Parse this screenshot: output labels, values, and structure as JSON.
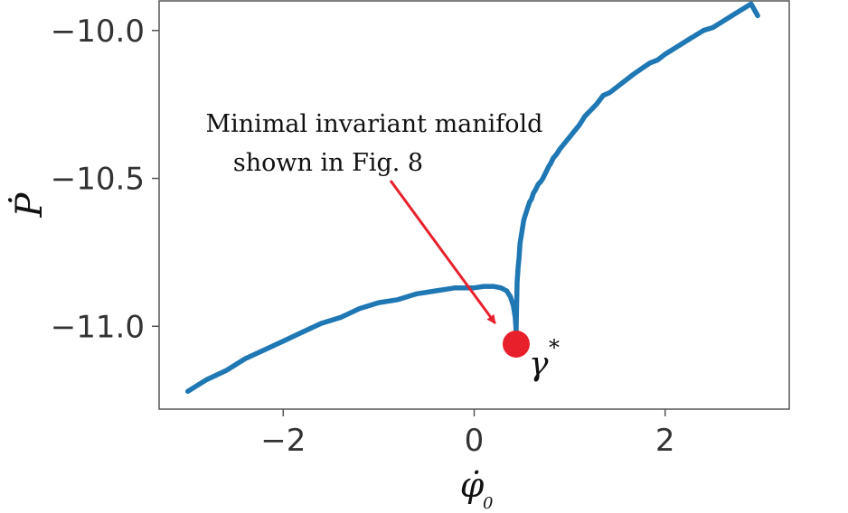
{
  "chart_data": {
    "type": "line",
    "xlabel": "φ̇",
    "xlabel_subscript": "0",
    "ylabel": "Ṗ",
    "xlim": [
      -3.3,
      3.3
    ],
    "ylim": [
      -11.28,
      -9.9
    ],
    "xticks": [
      -2,
      0,
      2
    ],
    "xtick_labels": [
      "−2",
      "0",
      "2"
    ],
    "yticks": [
      -10.0,
      -10.5,
      -11.0
    ],
    "ytick_labels": [
      "−10.0",
      "−10.5",
      "−11.0"
    ],
    "grid": false,
    "series": [
      {
        "color": "#1f77b4",
        "x": [
          -3.0,
          -2.8,
          -2.6,
          -2.4,
          -2.2,
          -2.0,
          -1.8,
          -1.6,
          -1.4,
          -1.2,
          -1.0,
          -0.8,
          -0.6,
          -0.4,
          -0.2,
          0.0,
          0.1,
          0.2,
          0.28,
          0.34,
          0.38,
          0.41,
          0.43,
          0.44,
          0.44,
          0.44,
          0.45,
          0.46,
          0.47,
          0.48,
          0.5,
          0.52,
          0.54,
          0.56,
          0.58,
          0.6,
          0.62,
          0.64,
          0.67,
          0.7,
          0.72,
          0.75,
          0.78,
          0.8,
          0.83,
          0.86,
          0.9,
          0.95,
          1.0,
          1.05,
          1.1,
          1.16,
          1.22,
          1.28,
          1.35,
          1.42,
          1.5,
          1.58,
          1.66,
          1.75,
          1.84,
          1.92,
          2.0,
          2.1,
          2.2,
          2.3,
          2.4,
          2.5,
          2.6,
          2.7,
          2.8,
          2.9,
          2.97
        ],
        "y": [
          -11.22,
          -11.18,
          -11.15,
          -11.11,
          -11.08,
          -11.05,
          -11.02,
          -10.99,
          -10.97,
          -10.94,
          -10.92,
          -10.91,
          -10.89,
          -10.88,
          -10.87,
          -10.87,
          -10.865,
          -10.865,
          -10.87,
          -10.88,
          -10.9,
          -10.93,
          -10.97,
          -11.02,
          -11.05,
          -11.0,
          -10.85,
          -10.8,
          -10.77,
          -10.72,
          -10.68,
          -10.64,
          -10.62,
          -10.6,
          -10.58,
          -10.57,
          -10.55,
          -10.54,
          -10.52,
          -10.51,
          -10.5,
          -10.48,
          -10.46,
          -10.45,
          -10.43,
          -10.42,
          -10.4,
          -10.38,
          -10.36,
          -10.34,
          -10.32,
          -10.29,
          -10.27,
          -10.25,
          -10.22,
          -10.21,
          -10.19,
          -10.17,
          -10.15,
          -10.13,
          -10.11,
          -10.1,
          -10.08,
          -10.06,
          -10.04,
          -10.02,
          -10.0,
          -9.99,
          -9.97,
          -9.95,
          -9.93,
          -9.91,
          -9.95
        ]
      }
    ],
    "marker": {
      "x": 0.44,
      "y": -11.06,
      "color": "#e8202b",
      "label": "γ",
      "label_superscript": "*"
    },
    "annotation": {
      "lines": [
        "Minimal invariant manifold",
        "shown in Fig. 8"
      ],
      "arrow_color": "#e8202b",
      "arrow_target": {
        "x": 0.22,
        "y": -10.99
      }
    }
  }
}
